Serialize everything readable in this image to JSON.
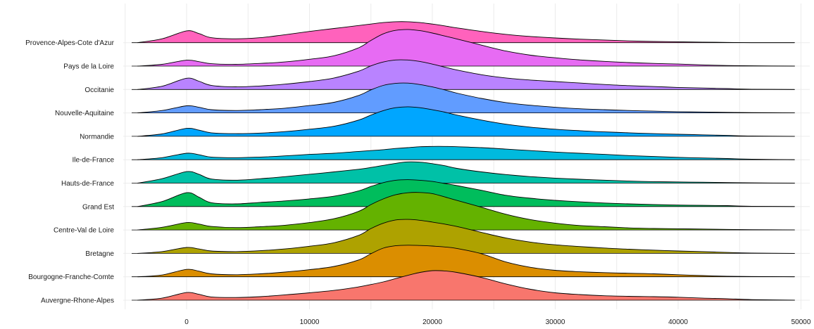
{
  "chart_data": {
    "type": "ridgeline",
    "title": "",
    "xlabel": "",
    "ylabel": "",
    "xlim": [
      -4500,
      49500
    ],
    "x_ticks": [
      0,
      10000,
      20000,
      30000,
      40000,
      50000
    ],
    "x_tick_labels": [
      "0",
      "10000",
      "20000",
      "30000",
      "40000",
      "50000"
    ],
    "grid": true,
    "legend": "none",
    "x": [
      -4000,
      -2000,
      0,
      1000,
      2000,
      4000,
      6000,
      8000,
      10000,
      12000,
      14000,
      15000,
      16000,
      17000,
      18000,
      19000,
      20000,
      21000,
      22000,
      24000,
      26000,
      28000,
      30000,
      32000,
      34000,
      36000,
      38000,
      40000,
      42000,
      44000,
      46000,
      49500
    ],
    "series": [
      {
        "name": "Auvergne-Rhone-Alpes",
        "color": "#F8766D",
        "density": [
          0.0,
          0.07,
          0.26,
          0.2,
          0.11,
          0.09,
          0.12,
          0.18,
          0.25,
          0.33,
          0.45,
          0.53,
          0.62,
          0.73,
          0.84,
          0.94,
          1.0,
          0.99,
          0.94,
          0.77,
          0.55,
          0.37,
          0.25,
          0.19,
          0.15,
          0.13,
          0.12,
          0.1,
          0.07,
          0.05,
          0.02,
          0.0
        ]
      },
      {
        "name": "Bourgogne-Franche-Comte",
        "color": "#DB8E00",
        "density": [
          0.0,
          0.06,
          0.25,
          0.19,
          0.1,
          0.07,
          0.1,
          0.16,
          0.24,
          0.35,
          0.57,
          0.78,
          0.97,
          1.05,
          1.07,
          1.06,
          1.04,
          1.01,
          0.96,
          0.78,
          0.5,
          0.32,
          0.22,
          0.17,
          0.14,
          0.12,
          0.1,
          0.07,
          0.04,
          0.02,
          0.01,
          0.0
        ]
      },
      {
        "name": "Bretagne",
        "color": "#AEA200",
        "density": [
          0.0,
          0.06,
          0.2,
          0.15,
          0.08,
          0.06,
          0.09,
          0.15,
          0.24,
          0.36,
          0.61,
          0.84,
          1.02,
          1.13,
          1.15,
          1.12,
          1.06,
          0.99,
          0.91,
          0.71,
          0.52,
          0.38,
          0.29,
          0.23,
          0.18,
          0.14,
          0.11,
          0.08,
          0.06,
          0.03,
          0.01,
          0.0
        ]
      },
      {
        "name": "Centre-Val de Loire",
        "color": "#64B200",
        "density": [
          0.0,
          0.09,
          0.25,
          0.2,
          0.12,
          0.08,
          0.11,
          0.16,
          0.25,
          0.38,
          0.63,
          0.86,
          1.05,
          1.19,
          1.26,
          1.27,
          1.23,
          1.12,
          1.0,
          0.77,
          0.53,
          0.35,
          0.23,
          0.15,
          0.11,
          0.07,
          0.05,
          0.04,
          0.03,
          0.02,
          0.01,
          0.0
        ]
      },
      {
        "name": "Grand Est",
        "color": "#00BD5C",
        "density": [
          0.0,
          0.17,
          0.47,
          0.32,
          0.13,
          0.09,
          0.14,
          0.19,
          0.26,
          0.35,
          0.53,
          0.68,
          0.81,
          0.89,
          0.91,
          0.89,
          0.85,
          0.78,
          0.71,
          0.55,
          0.38,
          0.28,
          0.21,
          0.16,
          0.12,
          0.09,
          0.07,
          0.05,
          0.04,
          0.03,
          0.01,
          0.0
        ]
      },
      {
        "name": "Hauts-de-France",
        "color": "#00C1A7",
        "density": [
          0.0,
          0.15,
          0.39,
          0.3,
          0.14,
          0.1,
          0.15,
          0.22,
          0.3,
          0.38,
          0.47,
          0.53,
          0.6,
          0.67,
          0.72,
          0.71,
          0.66,
          0.59,
          0.5,
          0.38,
          0.29,
          0.22,
          0.17,
          0.13,
          0.1,
          0.07,
          0.05,
          0.04,
          0.03,
          0.02,
          0.01,
          0.0
        ]
      },
      {
        "name": "Ile-de-France",
        "color": "#00BADE",
        "density": [
          0.0,
          0.07,
          0.22,
          0.17,
          0.09,
          0.07,
          0.09,
          0.13,
          0.18,
          0.22,
          0.28,
          0.31,
          0.34,
          0.38,
          0.41,
          0.44,
          0.45,
          0.45,
          0.44,
          0.41,
          0.36,
          0.31,
          0.26,
          0.22,
          0.18,
          0.14,
          0.11,
          0.08,
          0.06,
          0.04,
          0.02,
          0.0
        ]
      },
      {
        "name": "Normandie",
        "color": "#00A6FF",
        "density": [
          0.0,
          0.08,
          0.27,
          0.21,
          0.12,
          0.09,
          0.11,
          0.16,
          0.24,
          0.34,
          0.55,
          0.72,
          0.87,
          0.97,
          1.0,
          0.97,
          0.9,
          0.82,
          0.72,
          0.55,
          0.41,
          0.31,
          0.24,
          0.19,
          0.15,
          0.12,
          0.09,
          0.07,
          0.05,
          0.03,
          0.01,
          0.0
        ]
      },
      {
        "name": "Nouvelle-Aquitaine",
        "color": "#619CFF",
        "density": [
          0.0,
          0.08,
          0.24,
          0.19,
          0.11,
          0.08,
          0.11,
          0.16,
          0.25,
          0.36,
          0.59,
          0.78,
          0.93,
          1.0,
          1.01,
          0.96,
          0.88,
          0.78,
          0.67,
          0.49,
          0.35,
          0.26,
          0.19,
          0.14,
          0.11,
          0.08,
          0.06,
          0.04,
          0.03,
          0.02,
          0.01,
          0.0
        ]
      },
      {
        "name": "Occitanie",
        "color": "#B983FF",
        "density": [
          0.0,
          0.11,
          0.38,
          0.28,
          0.14,
          0.09,
          0.12,
          0.18,
          0.27,
          0.39,
          0.62,
          0.8,
          0.93,
          1.0,
          1.0,
          0.95,
          0.86,
          0.76,
          0.66,
          0.5,
          0.39,
          0.32,
          0.27,
          0.22,
          0.17,
          0.13,
          0.1,
          0.07,
          0.05,
          0.03,
          0.01,
          0.0
        ]
      },
      {
        "name": "Pays de la Loire",
        "color": "#E76BF3",
        "density": [
          0.0,
          0.06,
          0.2,
          0.15,
          0.08,
          0.06,
          0.09,
          0.14,
          0.23,
          0.35,
          0.62,
          0.87,
          1.09,
          1.21,
          1.24,
          1.2,
          1.12,
          1.02,
          0.92,
          0.71,
          0.51,
          0.37,
          0.28,
          0.21,
          0.16,
          0.12,
          0.09,
          0.07,
          0.04,
          0.02,
          0.01,
          0.0
        ]
      },
      {
        "name": "Provence-Alpes-Cote d'Azur",
        "color": "#FF62BC",
        "density": [
          0.0,
          0.13,
          0.4,
          0.31,
          0.17,
          0.13,
          0.17,
          0.27,
          0.38,
          0.48,
          0.58,
          0.63,
          0.68,
          0.71,
          0.71,
          0.68,
          0.63,
          0.57,
          0.5,
          0.38,
          0.28,
          0.21,
          0.16,
          0.12,
          0.09,
          0.06,
          0.04,
          0.03,
          0.02,
          0.01,
          0.0,
          0.0
        ]
      }
    ]
  }
}
